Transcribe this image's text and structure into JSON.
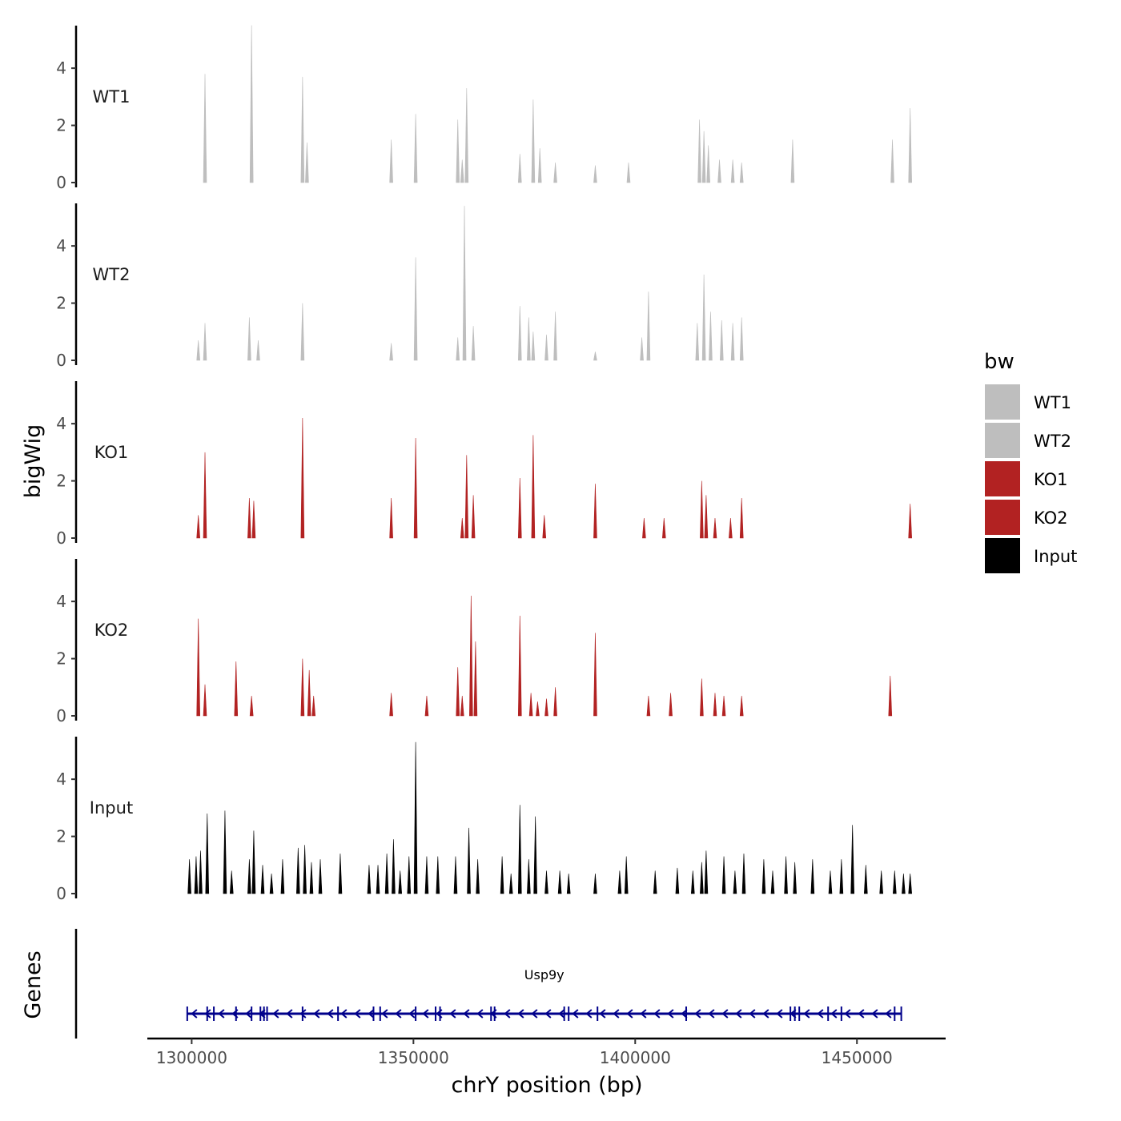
{
  "chart_data": {
    "type": "area",
    "title": "",
    "xlabel": "chrY position (bp)",
    "ylabel": "bigWig",
    "genes_label": "Genes",
    "xlim": [
      1290000,
      1470000
    ],
    "ylim": [
      0,
      5.6
    ],
    "x_ticks": [
      1300000,
      1350000,
      1400000,
      1450000
    ],
    "x_tick_labels": [
      "1300000",
      "1350000",
      "1400000",
      "1450000"
    ],
    "y_ticks": [
      0,
      2,
      4
    ],
    "y_tick_labels": [
      "0",
      "2",
      "4"
    ],
    "legend": {
      "title": "bw",
      "entries": [
        {
          "label": "WT1",
          "color": "#bebebe"
        },
        {
          "label": "WT2",
          "color": "#bebebe"
        },
        {
          "label": "KO1",
          "color": "#b22222"
        },
        {
          "label": "KO2",
          "color": "#b22222"
        },
        {
          "label": "Input",
          "color": "#000000"
        }
      ]
    },
    "series": [
      {
        "name": "WT1",
        "color": "#bebebe",
        "peaks": [
          [
            1303000,
            3.8
          ],
          [
            1313500,
            5.5
          ],
          [
            1325000,
            3.7
          ],
          [
            1326000,
            1.4
          ],
          [
            1345000,
            1.5
          ],
          [
            1350500,
            2.4
          ],
          [
            1360000,
            2.2
          ],
          [
            1361000,
            0.8
          ],
          [
            1362000,
            3.3
          ],
          [
            1374000,
            1.0
          ],
          [
            1377000,
            2.9
          ],
          [
            1378500,
            1.2
          ],
          [
            1382000,
            0.7
          ],
          [
            1391000,
            0.6
          ],
          [
            1398500,
            0.7
          ],
          [
            1414500,
            2.2
          ],
          [
            1415500,
            1.8
          ],
          [
            1416500,
            1.3
          ],
          [
            1419000,
            0.8
          ],
          [
            1422000,
            0.8
          ],
          [
            1424000,
            0.7
          ],
          [
            1435500,
            1.5
          ],
          [
            1458000,
            1.5
          ],
          [
            1462000,
            2.6
          ]
        ]
      },
      {
        "name": "WT2",
        "color": "#bebebe",
        "peaks": [
          [
            1301500,
            0.7
          ],
          [
            1303000,
            1.3
          ],
          [
            1313000,
            1.5
          ],
          [
            1315000,
            0.7
          ],
          [
            1325000,
            2.0
          ],
          [
            1345000,
            0.6
          ],
          [
            1350500,
            3.6
          ],
          [
            1360000,
            0.8
          ],
          [
            1361500,
            5.4
          ],
          [
            1363500,
            1.2
          ],
          [
            1374000,
            1.9
          ],
          [
            1376000,
            1.5
          ],
          [
            1377000,
            1.0
          ],
          [
            1380000,
            0.9
          ],
          [
            1382000,
            1.7
          ],
          [
            1391000,
            0.3
          ],
          [
            1401500,
            0.8
          ],
          [
            1403000,
            2.4
          ],
          [
            1414000,
            1.3
          ],
          [
            1415500,
            3.0
          ],
          [
            1417000,
            1.7
          ],
          [
            1419500,
            1.4
          ],
          [
            1422000,
            1.3
          ],
          [
            1424000,
            1.5
          ]
        ]
      },
      {
        "name": "KO1",
        "color": "#b22222",
        "peaks": [
          [
            1301500,
            0.8
          ],
          [
            1303000,
            3.0
          ],
          [
            1313000,
            1.4
          ],
          [
            1314000,
            1.3
          ],
          [
            1325000,
            4.2
          ],
          [
            1345000,
            1.4
          ],
          [
            1350500,
            3.5
          ],
          [
            1361000,
            0.7
          ],
          [
            1362000,
            2.9
          ],
          [
            1363500,
            1.5
          ],
          [
            1374000,
            2.1
          ],
          [
            1377000,
            3.6
          ],
          [
            1379500,
            0.8
          ],
          [
            1391000,
            1.9
          ],
          [
            1402000,
            0.7
          ],
          [
            1406500,
            0.7
          ],
          [
            1415000,
            2.0
          ],
          [
            1416000,
            1.5
          ],
          [
            1418000,
            0.7
          ],
          [
            1421500,
            0.7
          ],
          [
            1424000,
            1.4
          ],
          [
            1462000,
            1.2
          ]
        ]
      },
      {
        "name": "KO2",
        "color": "#b22222",
        "peaks": [
          [
            1301500,
            3.4
          ],
          [
            1303000,
            1.1
          ],
          [
            1310000,
            1.9
          ],
          [
            1313500,
            0.7
          ],
          [
            1325000,
            2.0
          ],
          [
            1326500,
            1.6
          ],
          [
            1327500,
            0.7
          ],
          [
            1345000,
            0.8
          ],
          [
            1353000,
            0.7
          ],
          [
            1360000,
            1.7
          ],
          [
            1361000,
            0.7
          ],
          [
            1363000,
            4.2
          ],
          [
            1364000,
            2.6
          ],
          [
            1374000,
            3.5
          ],
          [
            1376500,
            0.8
          ],
          [
            1378000,
            0.5
          ],
          [
            1380000,
            0.6
          ],
          [
            1382000,
            1.0
          ],
          [
            1391000,
            2.9
          ],
          [
            1403000,
            0.7
          ],
          [
            1408000,
            0.8
          ],
          [
            1415000,
            1.3
          ],
          [
            1418000,
            0.8
          ],
          [
            1420000,
            0.7
          ],
          [
            1424000,
            0.7
          ],
          [
            1457500,
            1.4
          ]
        ]
      },
      {
        "name": "Input",
        "color": "#000000",
        "peaks": [
          [
            1299500,
            1.2
          ],
          [
            1301000,
            1.3
          ],
          [
            1302000,
            1.5
          ],
          [
            1303500,
            2.8
          ],
          [
            1307500,
            2.9
          ],
          [
            1309000,
            0.8
          ],
          [
            1313000,
            1.2
          ],
          [
            1314000,
            2.2
          ],
          [
            1316000,
            1.0
          ],
          [
            1318000,
            0.7
          ],
          [
            1320500,
            1.2
          ],
          [
            1324000,
            1.6
          ],
          [
            1325500,
            1.7
          ],
          [
            1327000,
            1.1
          ],
          [
            1329000,
            1.2
          ],
          [
            1333500,
            1.4
          ],
          [
            1340000,
            1.0
          ],
          [
            1342000,
            1.0
          ],
          [
            1344000,
            1.4
          ],
          [
            1345500,
            1.9
          ],
          [
            1347000,
            0.8
          ],
          [
            1349000,
            1.3
          ],
          [
            1350500,
            5.3
          ],
          [
            1353000,
            1.3
          ],
          [
            1355500,
            1.3
          ],
          [
            1359500,
            1.3
          ],
          [
            1362500,
            2.3
          ],
          [
            1364500,
            1.2
          ],
          [
            1370000,
            1.3
          ],
          [
            1372000,
            0.7
          ],
          [
            1374000,
            3.1
          ],
          [
            1376000,
            1.2
          ],
          [
            1377500,
            2.7
          ],
          [
            1380000,
            0.8
          ],
          [
            1383000,
            0.8
          ],
          [
            1385000,
            0.7
          ],
          [
            1391000,
            0.7
          ],
          [
            1396500,
            0.8
          ],
          [
            1398000,
            1.3
          ],
          [
            1404500,
            0.8
          ],
          [
            1409500,
            0.9
          ],
          [
            1413000,
            0.8
          ],
          [
            1415000,
            1.1
          ],
          [
            1416000,
            1.5
          ],
          [
            1420000,
            1.3
          ],
          [
            1422500,
            0.8
          ],
          [
            1424500,
            1.4
          ],
          [
            1429000,
            1.2
          ],
          [
            1431000,
            0.8
          ],
          [
            1434000,
            1.3
          ],
          [
            1436000,
            1.1
          ],
          [
            1440000,
            1.2
          ],
          [
            1444000,
            0.8
          ],
          [
            1446500,
            1.2
          ],
          [
            1449000,
            2.4
          ],
          [
            1452000,
            1.0
          ],
          [
            1455500,
            0.8
          ],
          [
            1458500,
            0.8
          ],
          [
            1460500,
            0.7
          ],
          [
            1462000,
            0.7
          ]
        ]
      }
    ],
    "gene_track": {
      "name": "Usp9y",
      "start": 1299000,
      "end": 1460000,
      "strand": "-",
      "color": "#00008b"
    }
  }
}
